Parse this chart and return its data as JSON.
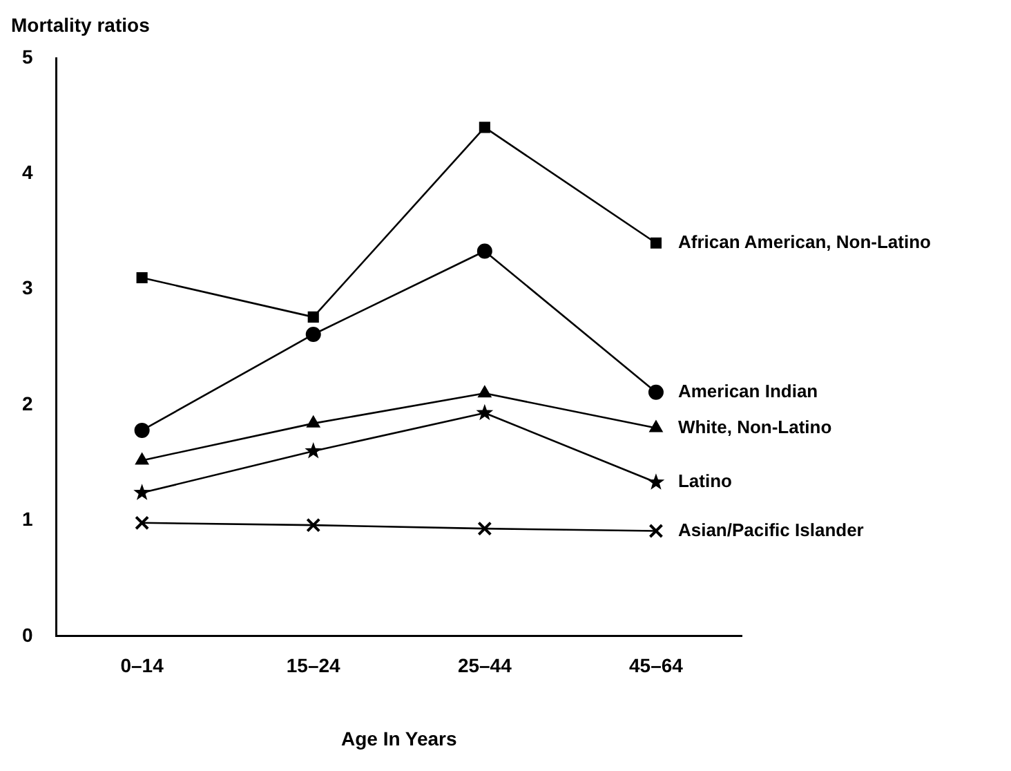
{
  "chart_data": {
    "type": "line",
    "ylabel": "Mortality ratios",
    "xlabel": "Age In Years",
    "categories": [
      "0–14",
      "15–24",
      "25–44",
      "45–64"
    ],
    "ylim": [
      0,
      5
    ],
    "yticks": [
      0,
      1,
      2,
      3,
      4,
      5
    ],
    "grid": false,
    "legend": false,
    "line_style": "solid",
    "series": [
      {
        "name": "African American, Non-Latino",
        "color": "#000000",
        "marker": "square",
        "values": [
          3.1,
          2.76,
          4.4,
          3.4
        ]
      },
      {
        "name": "American Indian",
        "color": "#000000",
        "marker": "circle",
        "values": [
          1.78,
          2.61,
          3.33,
          2.11
        ]
      },
      {
        "name": "White, Non-Latino",
        "color": "#000000",
        "marker": "triangle",
        "values": [
          1.52,
          1.84,
          2.1,
          1.8
        ]
      },
      {
        "name": "Latino",
        "color": "#000000",
        "marker": "star",
        "values": [
          1.24,
          1.6,
          1.93,
          1.33
        ]
      },
      {
        "name": "Asian/Pacific Islander",
        "color": "#000000",
        "marker": "cross",
        "values": [
          0.98,
          0.96,
          0.93,
          0.91
        ]
      }
    ]
  }
}
